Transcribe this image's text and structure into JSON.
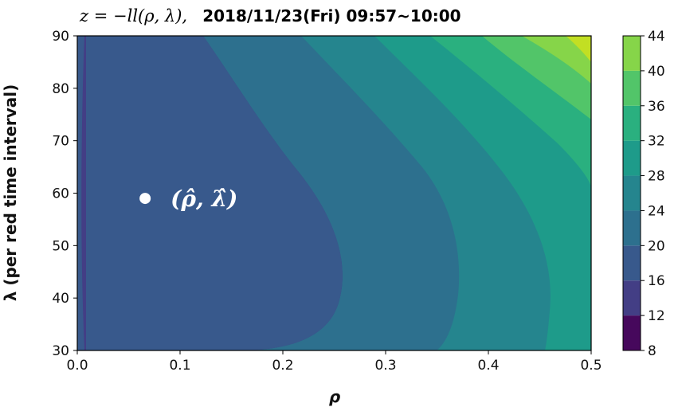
{
  "chart_data": {
    "type": "heatmap",
    "subtype": "filled-contour",
    "title_math": "z = −ll(ρ, λ),",
    "title_time": "2018/11/23(Fri) 09:57~10:00",
    "xlabel": "ρ",
    "ylabel": "λ (per red time interval)",
    "xlim": [
      0.0,
      0.5
    ],
    "ylim": [
      30,
      90
    ],
    "xticks": [
      "0.0",
      "0.1",
      "0.2",
      "0.3",
      "0.4",
      "0.5"
    ],
    "yticks": [
      "30",
      "40",
      "50",
      "60",
      "70",
      "80",
      "90"
    ],
    "colorbar": {
      "levels": [
        8,
        12,
        16,
        20,
        24,
        28,
        32,
        36,
        40,
        44
      ],
      "ticks": [
        "8",
        "12",
        "16",
        "20",
        "24",
        "28",
        "32",
        "36",
        "40",
        "44"
      ],
      "colors": [
        "#46085c",
        "#433e85",
        "#38598c",
        "#2d708e",
        "#25858e",
        "#1e9b8a",
        "#2ab07f",
        "#52c569",
        "#86d549",
        "#c2df23"
      ]
    },
    "estimate": {
      "rho": 0.066,
      "lambda": 59,
      "label": "(ρ̂, λ̂)"
    },
    "grid": false
  }
}
